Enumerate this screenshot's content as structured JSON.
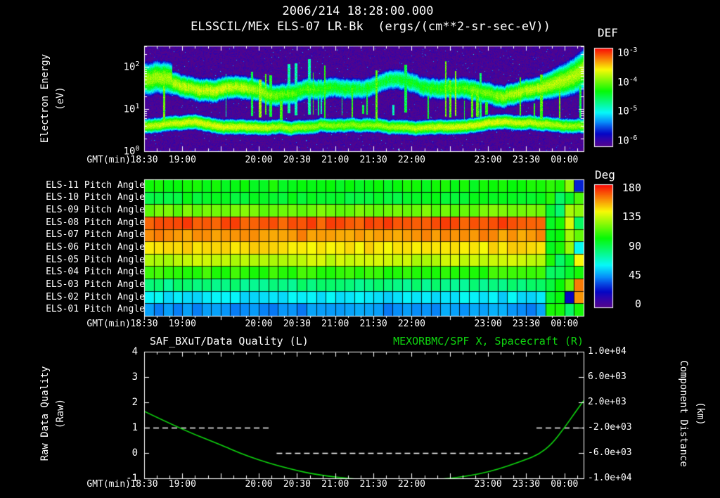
{
  "page": {
    "title": "2006/214 18:28:00.000",
    "subtitle": "ELSSCIL/MEx ELS-07 LR-Bk  (ergs/(cm**2-sr-sec-eV))",
    "def_label": "DEF",
    "deg_label": "Deg",
    "gmt_label": "GMT(min)",
    "electron_energy_label": "Electron Energy",
    "electron_energy_units": "(eV)",
    "raw_quality_label": "Raw Data Quality",
    "raw_quality_units": "(Raw)",
    "component_distance_label": "Component Distance",
    "component_distance_units": "(km)",
    "bottom_left_title": "SAF_BXuT/Data Quality (L)",
    "bottom_right_title": "MEXORBMC/SPF X, Spacecraft (R)",
    "colors": {
      "accent_green": "#0fd60f",
      "text": "#ffffff",
      "background": "#000000"
    }
  },
  "axes": {
    "total_minutes": 345,
    "x_start": "18:30",
    "x_ticks": [
      {
        "label": "18:30",
        "min": 0
      },
      {
        "label": "19:00",
        "min": 30
      },
      {
        "label": "20:00",
        "min": 90
      },
      {
        "label": "20:30",
        "min": 120
      },
      {
        "label": "21:00",
        "min": 150
      },
      {
        "label": "21:30",
        "min": 180
      },
      {
        "label": "22:00",
        "min": 210
      },
      {
        "label": "23:00",
        "min": 270
      },
      {
        "label": "23:30",
        "min": 300
      },
      {
        "label": "00:00",
        "min": 330
      }
    ],
    "energy_ticks": [
      {
        "base": "10",
        "exp": "2"
      },
      {
        "base": "10",
        "exp": "1"
      },
      {
        "base": "10",
        "exp": "0"
      }
    ],
    "def_ticks": [
      {
        "base": "10",
        "exp": "-3"
      },
      {
        "base": "10",
        "exp": "-4"
      },
      {
        "base": "10",
        "exp": "-5"
      },
      {
        "base": "10",
        "exp": "-6"
      }
    ],
    "deg_ticks": [
      "180",
      "135",
      "90",
      "45",
      "0"
    ],
    "quality_ticks": [
      "4",
      "3",
      "2",
      "1",
      "0",
      "-1"
    ],
    "distance_ticks": [
      "1.0e+04",
      "6.0e+03",
      "2.0e+03",
      "-2.0e+03",
      "-6.0e+03",
      "-1.0e+04"
    ]
  },
  "chart_data": [
    {
      "id": "electron_energy_spectrogram",
      "type": "heatmap",
      "title": "ELSSCIL/MEx ELS-07 LR-Bk",
      "units": "ergs/(cm**2-sr-sec-eV)",
      "x_axis": {
        "label": "GMT(min)",
        "start": "18:30",
        "end": "00:15"
      },
      "y_axis": {
        "label": "Electron Energy (eV)",
        "scale": "log",
        "min": 1,
        "max": 316
      },
      "colorbar": {
        "label": "DEF",
        "scale": "log",
        "min": 1e-06,
        "max": 0.001
      },
      "features": {
        "background_log_flux": -5.95,
        "lower_band": {
          "center_eV": 4.0,
          "sigma_logE": 0.13,
          "peak_log_flux": -3.85
        },
        "upper_band": {
          "center_eV": 33,
          "sigma_logE": 0.2,
          "peak_log_flux": -4.1
        },
        "streak_log_flux_range": [
          -4.8,
          -3.9
        ],
        "streak_dense_region": [
          "20:00",
          "23:00"
        ],
        "left_bright_region_before": "18:55",
        "right_bright_blob_after": "23:45"
      }
    },
    {
      "id": "pitch_angle_panel",
      "type": "heatmap",
      "colorbar": {
        "label": "Deg",
        "min": 0,
        "max": 180
      },
      "rows": [
        {
          "label": "ELS-11 Pitch Angle",
          "value_deg": 101
        },
        {
          "label": "ELS-10 Pitch Angle",
          "value_deg": 95
        },
        {
          "label": "ELS-09 Pitch Angle",
          "value_deg": 118
        },
        {
          "label": "ELS-08 Pitch Angle",
          "value_deg": 168
        },
        {
          "label": "ELS-07 Pitch Angle",
          "value_deg": 157
        },
        {
          "label": "ELS-06 Pitch Angle",
          "value_deg": 144
        },
        {
          "label": "ELS-05 Pitch Angle",
          "value_deg": 131
        },
        {
          "label": "ELS-04 Pitch Angle",
          "value_deg": 108
        },
        {
          "label": "ELS-03 Pitch Angle",
          "value_deg": 82
        },
        {
          "label": "ELS-02 Pitch Angle",
          "value_deg": 59
        },
        {
          "label": "ELS-01 Pitch Angle",
          "value_deg": 46
        }
      ],
      "transition": {
        "time": "23:45",
        "value_deg": 95,
        "note": "all rows become ~90-100 deg green; mixed color stripes at far right edge"
      }
    },
    {
      "id": "quality_and_distance",
      "type": "line",
      "x_axis": {
        "label": "GMT(min)",
        "start": "18:30",
        "end": "00:15"
      },
      "y_left": {
        "label": "Raw Data Quality (Raw)",
        "min": -1,
        "max": 4
      },
      "y_right": {
        "label": "Component Distance (km)",
        "min": -10000,
        "max": 10000
      },
      "series": [
        {
          "name": "SAF_BXuT/Data Quality (L)",
          "axis": "left",
          "style": "dashed",
          "color": "#ffffff",
          "segments": [
            {
              "start_min": 0,
              "end_min": 98,
              "value": 1
            },
            {
              "start_min": 104,
              "end_min": 301,
              "value": 0
            },
            {
              "start_min": 308,
              "end_min": 345,
              "value": 1
            }
          ]
        },
        {
          "name": "MEXORBMC/SPF X, Spacecraft (R)",
          "axis": "right",
          "style": "solid",
          "color": "#0fd60f",
          "points_min": [
            0,
            30,
            60,
            75,
            90,
            105,
            120,
            135,
            150,
            165,
            180,
            195,
            210,
            225,
            240,
            255,
            270,
            285,
            300,
            310,
            320,
            330,
            338,
            345
          ],
          "points_km": [
            600,
            -2300,
            -4700,
            -6000,
            -7100,
            -8000,
            -8800,
            -9400,
            -9800,
            -10100,
            -10300,
            -10400,
            -10380,
            -10250,
            -10000,
            -9600,
            -9000,
            -8100,
            -7000,
            -6200,
            -4600,
            -2000,
            300,
            2250
          ]
        }
      ]
    }
  ]
}
